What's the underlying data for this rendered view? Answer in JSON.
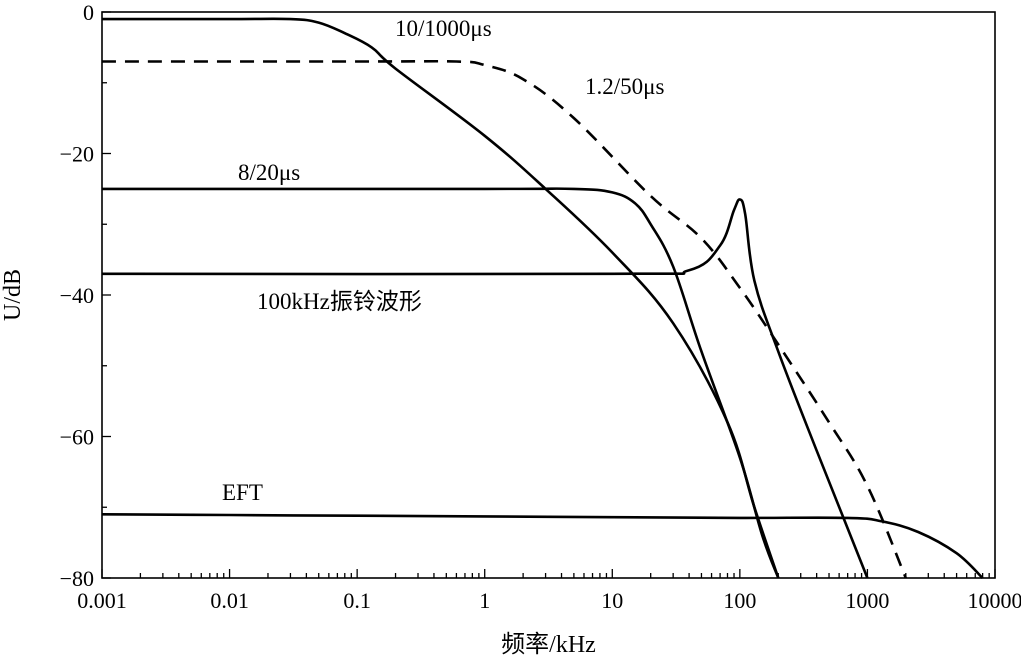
{
  "chart_data": {
    "type": "line",
    "xlabel": "频率/kHz",
    "ylabel": "U/dB",
    "xscale": "log",
    "xlim": [
      0.001,
      10000
    ],
    "ylim": [
      -80,
      0
    ],
    "x_ticks": [
      "0.001",
      "0.01",
      "0.1",
      "1",
      "10",
      "100",
      "1000",
      "10000"
    ],
    "y_ticks": [
      "0",
      "−20",
      "−40",
      "−60",
      "−80"
    ],
    "series": [
      {
        "name": "10/1000μs",
        "style": "solid",
        "color": "#000000",
        "points": [
          [
            0.001,
            -1
          ],
          [
            0.01,
            -1
          ],
          [
            0.03,
            -1
          ],
          [
            0.05,
            -1.5
          ],
          [
            0.08,
            -3
          ],
          [
            0.13,
            -5
          ],
          [
            0.2,
            -8
          ],
          [
            1,
            -17.5
          ],
          [
            3,
            -25
          ],
          [
            10,
            -34
          ],
          [
            30,
            -44
          ],
          [
            80,
            -58
          ],
          [
            130,
            -70
          ],
          [
            200,
            -80
          ]
        ]
      },
      {
        "name": "1.2/50μs",
        "style": "dashed",
        "color": "#000000",
        "points": [
          [
            0.001,
            -7
          ],
          [
            0.1,
            -7
          ],
          [
            0.6,
            -7
          ],
          [
            1,
            -7.5
          ],
          [
            2,
            -9.5
          ],
          [
            5,
            -15
          ],
          [
            20,
            -26
          ],
          [
            50,
            -32
          ],
          [
            100,
            -39
          ],
          [
            200,
            -47
          ],
          [
            500,
            -58
          ],
          [
            1000,
            -67
          ],
          [
            2000,
            -80
          ]
        ]
      },
      {
        "name": "8/20μs",
        "style": "solid",
        "color": "#000000",
        "points": [
          [
            0.001,
            -25
          ],
          [
            1,
            -25
          ],
          [
            5,
            -25
          ],
          [
            10,
            -25.5
          ],
          [
            15,
            -27
          ],
          [
            20,
            -30
          ],
          [
            30,
            -36
          ],
          [
            50,
            -48
          ],
          [
            100,
            -63
          ],
          [
            150,
            -74
          ],
          [
            200,
            -80
          ]
        ]
      },
      {
        "name": "100kHz振铃波形",
        "style": "solid",
        "color": "#000000",
        "points": [
          [
            0.001,
            -37
          ],
          [
            10,
            -37
          ],
          [
            40,
            -36.5
          ],
          [
            70,
            -33
          ],
          [
            90,
            -28
          ],
          [
            100,
            -26.5
          ],
          [
            110,
            -28.5
          ],
          [
            130,
            -38
          ],
          [
            200,
            -48
          ],
          [
            400,
            -62
          ],
          [
            700,
            -73
          ],
          [
            1000,
            -80
          ]
        ]
      },
      {
        "name": "EFT",
        "style": "solid",
        "color": "#000000",
        "points": [
          [
            0.001,
            -71
          ],
          [
            0.01,
            -71.1
          ],
          [
            0.1,
            -71.2
          ],
          [
            1,
            -71.3
          ],
          [
            10,
            -71.4
          ],
          [
            100,
            -71.5
          ],
          [
            700,
            -71.5
          ],
          [
            1300,
            -72
          ],
          [
            2500,
            -73.5
          ],
          [
            5000,
            -76.5
          ],
          [
            8000,
            -80
          ]
        ]
      }
    ],
    "annotations": [
      {
        "text": "10/1000μs",
        "series": "10/1000μs"
      },
      {
        "text": "1.2/50μs",
        "series": "1.2/50μs"
      },
      {
        "text": "8/20μs",
        "series": "8/20μs"
      },
      {
        "text": "100kHz振铃波形",
        "series": "100kHz振铃波形"
      },
      {
        "text": "EFT",
        "series": "EFT"
      }
    ],
    "grid": false,
    "legend": "none (inline labels)"
  }
}
